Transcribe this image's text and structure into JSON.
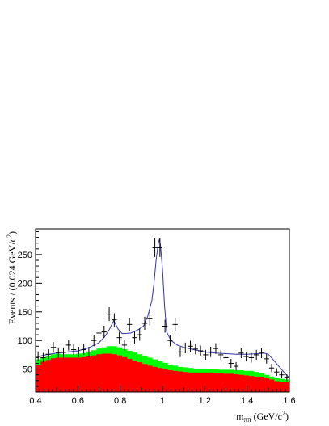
{
  "chart_data": {
    "type": "histogram+line",
    "xlabel_parts": {
      "m": "m",
      "sub": "ππ",
      "unit_pre": " (GeV/c",
      "sup": "2",
      "unit_post": ")"
    },
    "ylabel_parts": {
      "pre": "Events / (0.024 GeV/c",
      "sup": "2",
      "post": ")"
    },
    "xlim": [
      0.4,
      1.6
    ],
    "ylim": [
      10,
      295
    ],
    "x_ticks": [
      0.4,
      0.6,
      0.8,
      1.0,
      1.2,
      1.4,
      1.6
    ],
    "x_tick_labels": [
      "0.4",
      "0.6",
      "0.8",
      "1",
      "1.2",
      "1.4",
      "1.6"
    ],
    "y_ticks": [
      50,
      100,
      150,
      200,
      250
    ],
    "y_tick_labels": [
      "50",
      "100",
      "150",
      "200",
      "250"
    ],
    "bin_width": 0.024,
    "colors": {
      "signal_fill": "#ff0000",
      "background_fill": "#00ff00",
      "fit_line": "#3333aa",
      "data_markers": "#000000"
    },
    "series": [
      {
        "kind": "stacked_hist_total",
        "bin_centers": [
          0.412,
          0.436,
          0.46,
          0.484,
          0.508,
          0.532,
          0.556,
          0.58,
          0.604,
          0.628,
          0.652,
          0.676,
          0.7,
          0.724,
          0.748,
          0.772,
          0.796,
          0.82,
          0.844,
          0.868,
          0.892,
          0.916,
          0.94,
          0.964,
          0.988,
          1.012,
          1.036,
          1.06,
          1.084,
          1.108,
          1.132,
          1.156,
          1.18,
          1.204,
          1.228,
          1.252,
          1.276,
          1.3,
          1.324,
          1.348,
          1.372,
          1.396,
          1.42,
          1.444,
          1.468,
          1.492,
          1.516,
          1.54,
          1.564,
          1.588
        ],
        "values": [
          67,
          70,
          73,
          76,
          77,
          76,
          76,
          76,
          77,
          78,
          80,
          83,
          86,
          88,
          90,
          90,
          88,
          85,
          82,
          79,
          76,
          73,
          70,
          67,
          64,
          61,
          58,
          56,
          54,
          53,
          52,
          51,
          51,
          51,
          50,
          50,
          49,
          49,
          49,
          48,
          48,
          47,
          47,
          45,
          43,
          40,
          37,
          34,
          33,
          32
        ]
      },
      {
        "kind": "hist_red",
        "bin_centers": [
          0.412,
          0.436,
          0.46,
          0.484,
          0.508,
          0.532,
          0.556,
          0.58,
          0.604,
          0.628,
          0.652,
          0.676,
          0.7,
          0.724,
          0.748,
          0.772,
          0.796,
          0.82,
          0.844,
          0.868,
          0.892,
          0.916,
          0.94,
          0.964,
          0.988,
          1.012,
          1.036,
          1.06,
          1.084,
          1.108,
          1.132,
          1.156,
          1.18,
          1.204,
          1.228,
          1.252,
          1.276,
          1.3,
          1.324,
          1.348,
          1.372,
          1.396,
          1.42,
          1.444,
          1.468,
          1.492,
          1.516,
          1.54,
          1.564,
          1.588
        ],
        "values": [
          58,
          63,
          66,
          69,
          70,
          70,
          70,
          70,
          70,
          71,
          72,
          74,
          76,
          77,
          77,
          76,
          74,
          71,
          68,
          65,
          62,
          59,
          56,
          54,
          52,
          50,
          48,
          47,
          46,
          45,
          44,
          44,
          44,
          44,
          44,
          43,
          43,
          42,
          42,
          41,
          40,
          39,
          38,
          37,
          36,
          34,
          32,
          29,
          28,
          27
        ]
      },
      {
        "kind": "fit_curve",
        "x": [
          0.41,
          0.45,
          0.5,
          0.55,
          0.6,
          0.65,
          0.7,
          0.73,
          0.75,
          0.77,
          0.79,
          0.81,
          0.85,
          0.88,
          0.91,
          0.93,
          0.95,
          0.96,
          0.97,
          0.98,
          0.985,
          0.99,
          1.0,
          1.01,
          1.02,
          1.04,
          1.07,
          1.1,
          1.15,
          1.2,
          1.25,
          1.3,
          1.35,
          1.4,
          1.45,
          1.48,
          1.5,
          1.52,
          1.55,
          1.58,
          1.6
        ],
        "y": [
          72,
          75,
          78,
          80,
          82,
          87,
          96,
          108,
          120,
          135,
          120,
          112,
          113,
          118,
          125,
          142,
          170,
          200,
          240,
          270,
          276,
          268,
          225,
          160,
          115,
          100,
          92,
          88,
          84,
          80,
          78,
          77,
          76,
          76,
          77,
          78,
          76,
          68,
          55,
          42,
          35
        ]
      },
      {
        "kind": "data_points",
        "x": [
          0.412,
          0.436,
          0.46,
          0.484,
          0.508,
          0.532,
          0.556,
          0.58,
          0.604,
          0.628,
          0.652,
          0.676,
          0.7,
          0.724,
          0.748,
          0.772,
          0.796,
          0.82,
          0.844,
          0.868,
          0.892,
          0.916,
          0.94,
          0.964,
          0.988,
          1.012,
          1.036,
          1.06,
          1.084,
          1.108,
          1.132,
          1.156,
          1.18,
          1.204,
          1.228,
          1.252,
          1.276,
          1.3,
          1.324,
          1.348,
          1.372,
          1.396,
          1.42,
          1.444,
          1.468,
          1.492,
          1.516,
          1.54,
          1.564,
          1.588
        ],
        "y": [
          72,
          70,
          76,
          88,
          79,
          79,
          92,
          84,
          80,
          84,
          80,
          100,
          113,
          115,
          146,
          136,
          105,
          92,
          128,
          105,
          110,
          130,
          138,
          262,
          262,
          125,
          100,
          128,
          80,
          87,
          90,
          85,
          82,
          75,
          80,
          86,
          75,
          70,
          60,
          55,
          78,
          72,
          70,
          75,
          78,
          68,
          52,
          45,
          40,
          35
        ]
      }
    ]
  }
}
